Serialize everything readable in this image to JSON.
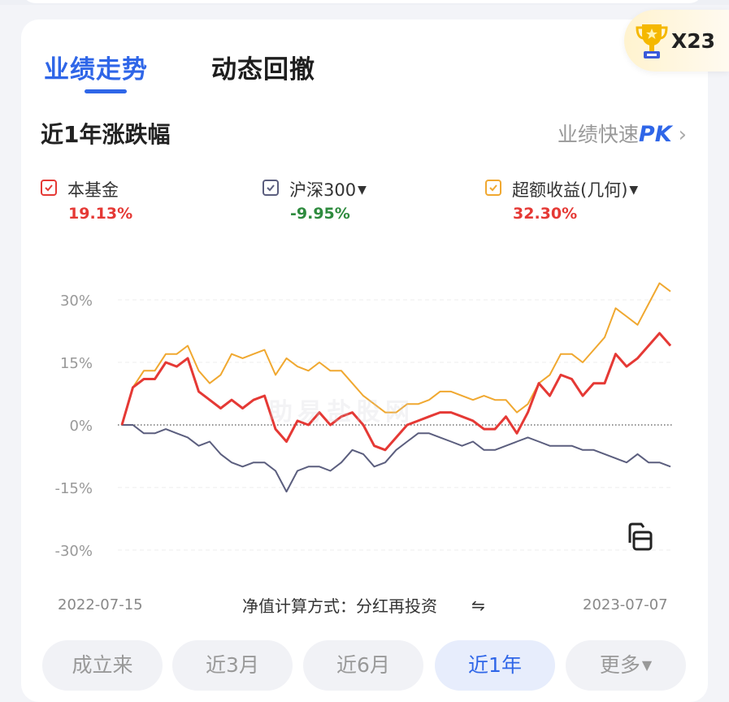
{
  "tabs": [
    {
      "label": "业绩走势",
      "active": true
    },
    {
      "label": "动态回撤",
      "active": false
    }
  ],
  "badge": {
    "icon": "trophy-icon",
    "text": "X23"
  },
  "subtitle": "近1年涨跌幅",
  "pk_link": {
    "text": "业绩快速",
    "pk": "PK",
    "chevron": "›"
  },
  "legend": [
    {
      "label": "本基金",
      "value": "19.13%",
      "color": "#e53935",
      "value_color": "#e53935",
      "dropdown": false
    },
    {
      "label": "沪深300",
      "value": "-9.95%",
      "color": "#5b5e7e",
      "value_color": "#2e8b3e",
      "dropdown": true
    },
    {
      "label": "超额收益(几何)",
      "value": "32.30%",
      "color": "#f0a830",
      "value_color": "#e53935",
      "dropdown": true
    }
  ],
  "watermark": "助易盐股网",
  "nav_method": {
    "label": "净值计算方式：分红再投资",
    "icon": "swap-icon"
  },
  "periods": [
    {
      "label": "成立来",
      "active": false
    },
    {
      "label": "近3月",
      "active": false
    },
    {
      "label": "近6月",
      "active": false
    },
    {
      "label": "近1年",
      "active": true
    },
    {
      "label": "更多",
      "active": false,
      "dropdown": true
    }
  ],
  "chart_data": {
    "type": "line",
    "x_start": "2022-07-15",
    "x_end": "2023-07-07",
    "y_ticks": [
      "30%",
      "15%",
      "0%",
      "-15%",
      "-30%"
    ],
    "ylim": [
      -30,
      30
    ],
    "zero_line": "dotted",
    "series": [
      {
        "name": "本基金",
        "color": "#e53935",
        "values": [
          0,
          9,
          11,
          11,
          15,
          14,
          16,
          8,
          6,
          4,
          6,
          4,
          6,
          7,
          -1,
          -4,
          1,
          0,
          3,
          0,
          2,
          3,
          0,
          -5,
          -6,
          -3,
          0,
          1,
          2,
          3,
          3,
          2,
          1,
          -1,
          -1,
          2,
          -2,
          3,
          10,
          7,
          12,
          11,
          7,
          10,
          10,
          17,
          14,
          16,
          19,
          22,
          19
        ]
      },
      {
        "name": "沪深300",
        "color": "#5b5e7e",
        "values": [
          0,
          0,
          -2,
          -2,
          -1,
          -2,
          -3,
          -5,
          -4,
          -7,
          -9,
          -10,
          -9,
          -9,
          -11,
          -16,
          -11,
          -10,
          -10,
          -11,
          -9,
          -6,
          -7,
          -10,
          -9,
          -6,
          -4,
          -2,
          -2,
          -3,
          -4,
          -5,
          -4,
          -6,
          -6,
          -5,
          -4,
          -3,
          -4,
          -5,
          -5,
          -5,
          -6,
          -6,
          -7,
          -8,
          -9,
          -7,
          -9,
          -9,
          -10
        ]
      },
      {
        "name": "超额收益(几何)",
        "color": "#f0a830",
        "values": [
          0,
          9,
          13,
          13,
          17,
          17,
          19,
          13,
          10,
          12,
          17,
          16,
          17,
          18,
          12,
          16,
          14,
          13,
          15,
          13,
          13,
          10,
          7,
          5,
          3,
          3,
          5,
          5,
          6,
          8,
          8,
          7,
          6,
          7,
          6,
          6,
          3,
          5,
          10,
          12,
          17,
          17,
          15,
          18,
          21,
          28,
          26,
          24,
          29,
          34,
          32
        ]
      }
    ]
  }
}
